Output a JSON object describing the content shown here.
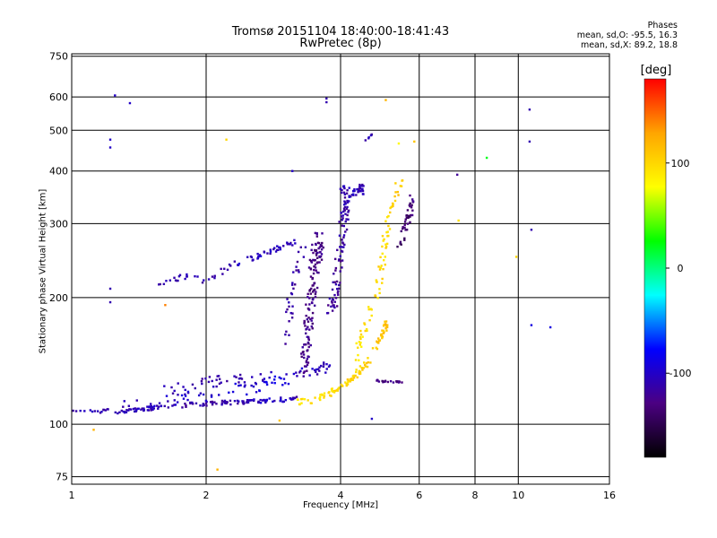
{
  "header": {
    "title_line1": "Tromsø 20151104 18:40:00-18:41:43",
    "title_line2": "RwPretec (8p)",
    "stats_title": "Phases",
    "stats_o": "mean, sd,O: -95.5, 16.3",
    "stats_x": "mean, sd,X: 89.2, 18.8"
  },
  "colorbar": {
    "unit": "[deg]",
    "range": [
      -180,
      180
    ],
    "ticks": [
      {
        "value": 100,
        "label": "100"
      },
      {
        "value": 0,
        "label": "0"
      },
      {
        "value": -100,
        "label": "-100"
      }
    ],
    "colors": [
      "#000000",
      "#4b0082",
      "#0000ff",
      "#00ffff",
      "#00ff00",
      "#ffff00",
      "#ffa500",
      "#ff0000"
    ]
  },
  "chart_data": {
    "type": "scatter",
    "title": "Tromsø 20151104 18:40:00-18:41:43",
    "subtitle": "RwPretec (8p)",
    "xlabel": "Frequency [MHz]",
    "ylabel": "Stationary phase Virtual Height [km]",
    "x_scale": "log",
    "y_scale": "log",
    "xlim": [
      1,
      16
    ],
    "ylim": [
      72,
      760
    ],
    "x_ticks": [
      {
        "value": 1,
        "label": "1"
      },
      {
        "value": 2,
        "label": "2"
      },
      {
        "value": 4,
        "label": "4"
      },
      {
        "value": 6,
        "label": "6"
      },
      {
        "value": 8,
        "label": "8"
      },
      {
        "value": 10,
        "label": "10"
      },
      {
        "value": 16,
        "label": "16"
      }
    ],
    "y_ticks": [
      {
        "value": 75,
        "label": "75"
      },
      {
        "value": 100,
        "label": "100"
      },
      {
        "value": 200,
        "label": "200"
      },
      {
        "value": 300,
        "label": "300"
      },
      {
        "value": 400,
        "label": "400"
      },
      {
        "value": 500,
        "label": "500"
      },
      {
        "value": 600,
        "label": "600"
      },
      {
        "value": 750,
        "label": "750"
      }
    ],
    "grid": true,
    "color_encoding": "phase [deg]",
    "segments": [
      {
        "points": [
          [
            1.0,
            108,
            -110
          ],
          [
            1.3,
            107,
            -110
          ],
          [
            1.6,
            110,
            -110
          ],
          [
            2.0,
            112,
            -115
          ],
          [
            2.4,
            113,
            -110
          ],
          [
            2.8,
            114,
            -100
          ],
          [
            3.2,
            115,
            -110
          ]
        ],
        "n": 150,
        "spread": 0.012
      },
      {
        "points": [
          [
            1.3,
            110,
            -105
          ],
          [
            1.8,
            115,
            -100
          ],
          [
            2.3,
            120,
            -95
          ],
          [
            2.8,
            125,
            -90
          ],
          [
            3.3,
            132,
            -100
          ],
          [
            3.8,
            138,
            -110
          ]
        ],
        "n": 90,
        "spread": 0.035
      },
      {
        "points": [
          [
            1.6,
            120,
            -110
          ],
          [
            2.0,
            126,
            -110
          ],
          [
            2.4,
            128,
            -115
          ],
          [
            2.8,
            130,
            -100
          ]
        ],
        "n": 40,
        "spread": 0.03
      },
      {
        "points": [
          [
            1.5,
            215,
            -110
          ],
          [
            1.8,
            225,
            -110
          ],
          [
            2.0,
            218,
            -110
          ],
          [
            2.3,
            240,
            -105
          ],
          [
            2.6,
            250,
            -100
          ],
          [
            2.9,
            262,
            -105
          ],
          [
            3.2,
            272,
            -110
          ]
        ],
        "n": 70,
        "spread": 0.015
      },
      {
        "points": [
          [
            3.0,
            150,
            -115
          ],
          [
            3.1,
            200,
            -115
          ],
          [
            3.3,
            260,
            -115
          ]
        ],
        "n": 30,
        "spread": 0.04
      },
      {
        "points": [
          [
            3.3,
            130,
            -125
          ],
          [
            3.4,
            180,
            -125
          ],
          [
            3.5,
            240,
            -130
          ],
          [
            3.6,
            280,
            -125
          ]
        ],
        "n": 140,
        "spread": 0.05
      },
      {
        "points": [
          [
            3.8,
            180,
            -120
          ],
          [
            3.95,
            230,
            -118
          ],
          [
            4.05,
            300,
            -115
          ],
          [
            4.15,
            350,
            -112
          ]
        ],
        "n": 90,
        "spread": 0.04
      },
      {
        "points": [
          [
            4.0,
            360,
            -110
          ],
          [
            4.3,
            350,
            -105
          ],
          [
            4.5,
            365,
            -110
          ]
        ],
        "n": 40,
        "spread": 0.03
      },
      {
        "points": [
          [
            3.2,
            112,
            95
          ],
          [
            3.6,
            116,
            95
          ],
          [
            4.0,
            122,
            100
          ],
          [
            4.3,
            130,
            100
          ],
          [
            4.6,
            140,
            105
          ],
          [
            4.9,
            160,
            110
          ],
          [
            5.1,
            175,
            115
          ]
        ],
        "n": 110,
        "spread": 0.02
      },
      {
        "points": [
          [
            4.3,
            140,
            90
          ],
          [
            4.6,
            180,
            95
          ],
          [
            4.9,
            220,
            100
          ],
          [
            5.0,
            260,
            95
          ],
          [
            5.1,
            300,
            100
          ],
          [
            5.3,
            350,
            105
          ],
          [
            5.5,
            390,
            110
          ]
        ],
        "n": 80,
        "spread": 0.03
      },
      {
        "points": [
          [
            5.4,
            270,
            -140
          ],
          [
            5.6,
            290,
            -140
          ],
          [
            5.7,
            320,
            -135
          ],
          [
            5.8,
            340,
            -130
          ]
        ],
        "n": 40,
        "spread": 0.03
      },
      {
        "points": [
          [
            4.8,
            127,
            -130
          ],
          [
            5.1,
            126,
            -130
          ],
          [
            5.5,
            126,
            -130
          ]
        ],
        "n": 20,
        "spread": 0.005
      },
      {
        "points": [
          [
            4.5,
            460,
            -110
          ],
          [
            4.7,
            490,
            -110
          ]
        ],
        "n": 6,
        "spread": 0.01
      }
    ],
    "isolated": [
      [
        1.22,
        455,
        -100
      ],
      [
        1.22,
        475,
        -100
      ],
      [
        1.25,
        605,
        -100
      ],
      [
        1.35,
        580,
        -100
      ],
      [
        1.22,
        210,
        -110
      ],
      [
        1.22,
        195,
        -110
      ],
      [
        1.12,
        97,
        120
      ],
      [
        1.62,
        192,
        140
      ],
      [
        2.22,
        475,
        100
      ],
      [
        2.12,
        78,
        120
      ],
      [
        2.92,
        102,
        110
      ],
      [
        3.12,
        400,
        -100
      ],
      [
        3.72,
        595,
        -110
      ],
      [
        3.72,
        583,
        -110
      ],
      [
        5.05,
        590,
        120
      ],
      [
        5.85,
        470,
        110
      ],
      [
        7.3,
        392,
        -120
      ],
      [
        7.35,
        305,
        95
      ],
      [
        8.5,
        430,
        20
      ],
      [
        10.6,
        560,
        -110
      ],
      [
        10.6,
        470,
        -110
      ],
      [
        10.7,
        290,
        -110
      ],
      [
        11.8,
        170,
        -90
      ],
      [
        10.7,
        172,
        -90
      ],
      [
        4.7,
        103,
        -100
      ],
      [
        9.9,
        250,
        100
      ],
      [
        5.4,
        465,
        80
      ]
    ]
  }
}
